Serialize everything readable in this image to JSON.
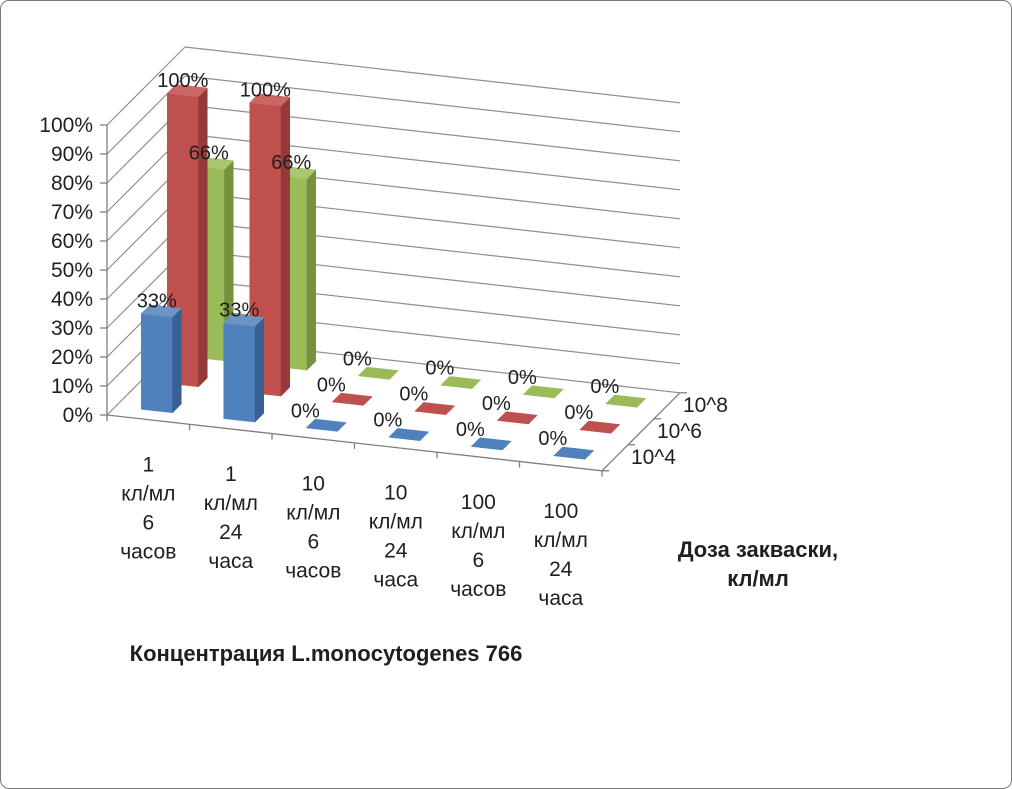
{
  "chart_data": {
    "type": "bar",
    "projection": "3d-column",
    "categories": [
      "1 кл/мл 6 часов",
      "1 кл/мл 24 часа",
      "10 кл/мл 6 часов",
      "10 кл/мл 24 часа",
      "100 кл/мл 6 часов",
      "100 кл/мл 24 часа"
    ],
    "category_label_lines": [
      [
        "1",
        "кл/мл",
        "6",
        "часов"
      ],
      [
        "1",
        "кл/мл",
        "24",
        "часа"
      ],
      [
        "10",
        "кл/мл",
        "6",
        "часов"
      ],
      [
        "10",
        "кл/мл",
        "24",
        "часа"
      ],
      [
        "100",
        "кл/мл",
        "6",
        "часов"
      ],
      [
        "100",
        "кл/мл",
        "24",
        "часа"
      ]
    ],
    "series": [
      {
        "name": "10^4",
        "values": [
          33,
          33,
          0,
          0,
          0,
          0
        ],
        "color": "#4F81BD",
        "color_top": "#6D94C4",
        "color_side": "#395F93"
      },
      {
        "name": "10^6",
        "values": [
          100,
          100,
          0,
          0,
          0,
          0
        ],
        "color": "#C0504D",
        "color_top": "#CA6764",
        "color_side": "#943B39"
      },
      {
        "name": "10^8",
        "values": [
          66,
          66,
          0,
          0,
          0,
          0
        ],
        "color": "#9BBB59",
        "color_top": "#ABC670",
        "color_side": "#77923F"
      }
    ],
    "data_label_format": "{value}%",
    "data_labels_shown": [
      "33%",
      "100%",
      "66%",
      "0%"
    ],
    "value_axis": {
      "min": 0,
      "max": 100,
      "step": 10,
      "tick_labels": [
        "0%",
        "10%",
        "20%",
        "30%",
        "40%",
        "50%",
        "60%",
        "70%",
        "80%",
        "90%",
        "100%"
      ]
    },
    "depth_axis": {
      "labels": [
        "10^4",
        "10^6",
        "10^8"
      ],
      "title": "Доза закваски,\nкл/мл"
    },
    "category_axis": {
      "title": "Концентрация L.monocytogenes 766"
    },
    "grid": true,
    "legend": "none",
    "colors": {
      "gridline": "#8F8F8F",
      "axis_line": "#7F7F7F",
      "text": "#1F1F1F",
      "background": "#FFFFFF",
      "border": "#7A7A7A"
    }
  }
}
